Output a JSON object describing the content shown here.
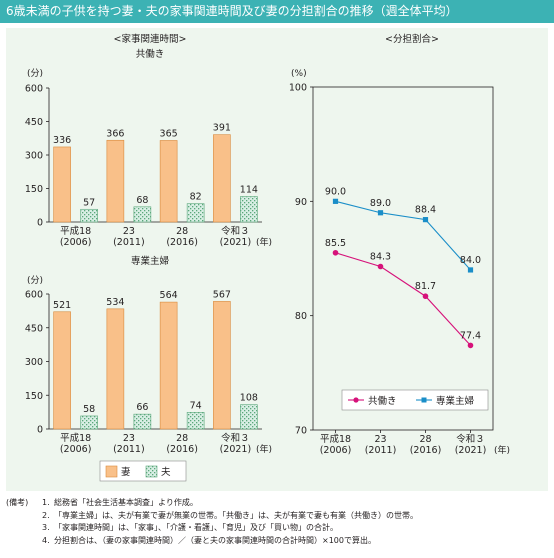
{
  "title": "6歳未満の子供を持つ妻・夫の家事関連時間及び妻の分担割合の推移（週全体平均）",
  "colors": {
    "header": "#3cb2b4",
    "panel": "#eef6ee",
    "wife_bar": "#f9c089",
    "husband_bar": "#d8eee4",
    "dual_income_line": "#d6127a",
    "housewife_line": "#1a8ec8"
  },
  "chart_data": [
    {
      "type": "bar",
      "section_title": "<家事関連時間>",
      "title": "共働き",
      "unit": "(分)",
      "ylim": [
        0,
        600
      ],
      "yticks": [
        0,
        150,
        300,
        450,
        600
      ],
      "categories": [
        [
          "平成18",
          "(2006)"
        ],
        [
          "23",
          "(2011)"
        ],
        [
          "28",
          "(2016)"
        ],
        [
          "令和３",
          "(2021)"
        ]
      ],
      "x_unit": "(年)",
      "series": [
        {
          "name": "妻",
          "values": [
            336,
            366,
            365,
            391
          ]
        },
        {
          "name": "夫",
          "values": [
            57,
            68,
            82,
            114
          ]
        }
      ]
    },
    {
      "type": "bar",
      "title": "専業主婦",
      "unit": "(分)",
      "ylim": [
        0,
        600
      ],
      "yticks": [
        0,
        150,
        300,
        450,
        600
      ],
      "categories": [
        [
          "平成18",
          "(2006)"
        ],
        [
          "23",
          "(2011)"
        ],
        [
          "28",
          "(2016)"
        ],
        [
          "令和３",
          "(2021)"
        ]
      ],
      "x_unit": "(年)",
      "series": [
        {
          "name": "妻",
          "values": [
            521,
            534,
            564,
            567
          ]
        },
        {
          "name": "夫",
          "values": [
            58,
            66,
            74,
            108
          ]
        }
      ]
    },
    {
      "type": "line",
      "section_title": "<分担割合>",
      "unit": "(%)",
      "ylim": [
        70,
        100
      ],
      "yticks": [
        70,
        80,
        90,
        100
      ],
      "categories": [
        [
          "平成18",
          "(2006)"
        ],
        [
          "23",
          "(2011)"
        ],
        [
          "28",
          "(2016)"
        ],
        [
          "令和３",
          "(2021)"
        ]
      ],
      "x_unit": "(年)",
      "series": [
        {
          "name": "共働き",
          "values": [
            85.5,
            84.3,
            81.7,
            77.4
          ],
          "color": "#d6127a",
          "marker": "circle"
        },
        {
          "name": "専業主婦",
          "values": [
            90.0,
            89.0,
            88.4,
            84.0
          ],
          "color": "#1a8ec8",
          "marker": "square"
        }
      ]
    }
  ],
  "bar_legend": [
    {
      "name": "妻"
    },
    {
      "name": "夫"
    }
  ],
  "notes": {
    "label": "(備考)",
    "items": [
      {
        "num": "1.",
        "text": "総務省「社会生活基本調査」より作成。"
      },
      {
        "num": "2.",
        "text": "「専業主婦」は、夫が有業で妻が無業の世帯。「共働き」は、夫が有業で妻も有業（共働き）の世帯。"
      },
      {
        "num": "3.",
        "text": "「家事関連時間」は、「家事」、「介護・看護」、「育児」及び「買い物」の合計。"
      },
      {
        "num": "4.",
        "text": "分担割合は、（妻の家事関連時間）／（妻と夫の家事関連時間の合計時間）×100で算出。"
      }
    ]
  }
}
